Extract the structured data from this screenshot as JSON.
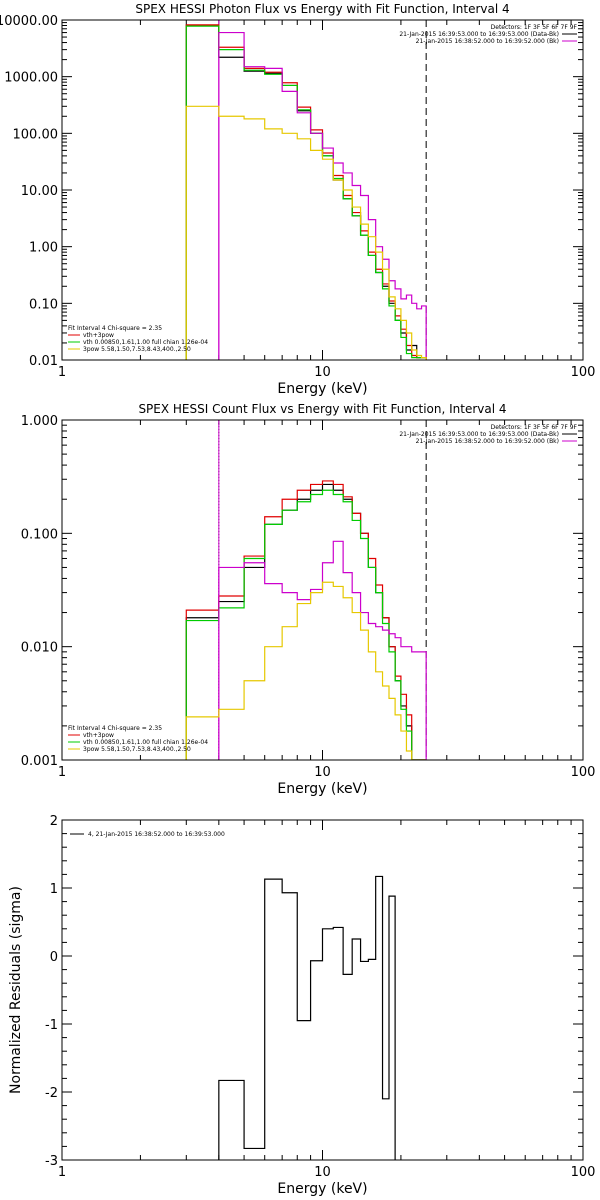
{
  "chart_data": [
    {
      "type": "line",
      "title": "SPEX HESSI Photon Flux vs Energy with Fit Function, Interval 4",
      "xlabel": "Energy (keV)",
      "ylabel": "",
      "xlim": [
        1,
        100
      ],
      "ylim": [
        0.01,
        10000
      ],
      "x_scale": "log",
      "y_scale": "log",
      "x_tick_labels": [
        "1",
        "10",
        "100"
      ],
      "y_tick_labels": [
        "0.01",
        "0.10",
        "1.00",
        "10.00",
        "100.00",
        "1000.00",
        "10000.00"
      ],
      "y_tick_values": [
        0.01,
        0.1,
        1,
        10,
        100,
        1000,
        10000
      ],
      "bin_edges": [
        3,
        4,
        5,
        6,
        7,
        8,
        9,
        10,
        11,
        12,
        13,
        14,
        15,
        16,
        17,
        18,
        19,
        20,
        21,
        22,
        23,
        24,
        25
      ],
      "detectors_label": "Detectors: 1F 3F 5F 6F 7F 9F",
      "header_lines": [
        {
          "text": "21-Jan-2015 16:39:53.000 to 16:39:53.000 (Data-Bk)",
          "color": "#000000"
        },
        {
          "text": "21-Jan-2015 16:38:52.000 to 16:39:52.000 (Bk)",
          "color": "#cc00cc"
        }
      ],
      "fit_label": "Fit Interval 4   Chi-square = 2.35",
      "legend": [
        {
          "text": "vth+3pow",
          "color": "#e00000"
        },
        {
          "text": "vth 0.00850,1.61,1.00  full chian 1.26e-04",
          "color": "#00cc00"
        },
        {
          "text": "3pow 5.58,1.50,7.53,8.43,400.,2.50",
          "color": "#e6c800"
        }
      ],
      "vlines": [
        {
          "x": 4,
          "style": "solid",
          "color": "#cc00cc"
        },
        {
          "x": 25,
          "style": "dashed",
          "color": "#000000"
        }
      ],
      "series": [
        {
          "color": "#000000",
          "values": [
            8000,
            2200,
            1250,
            1150,
            700,
            250,
            100,
            40,
            15,
            7,
            3.5,
            1.6,
            0.7,
            0.35,
            0.2,
            0.1,
            0.05,
            0.03,
            0.015,
            0.018,
            0.011,
            0.011
          ]
        },
        {
          "color": "#e00000",
          "values": [
            8200,
            3300,
            1400,
            1200,
            780,
            290,
            115,
            45,
            18,
            8,
            4,
            1.9,
            0.8,
            0.4,
            0.22,
            0.11,
            0.06,
            0.035,
            0.018,
            0.012,
            0.011,
            0.011
          ]
        },
        {
          "color": "#00cc00",
          "values": [
            7800,
            3000,
            1300,
            1100,
            700,
            260,
            100,
            40,
            16,
            7,
            3.5,
            1.6,
            0.7,
            0.35,
            0.18,
            0.09,
            0.05,
            0.025,
            0.013,
            0.011,
            0.011,
            0.011
          ]
        },
        {
          "color": "#cc00cc",
          "values": [
            null,
            6000,
            1500,
            1400,
            550,
            230,
            100,
            55,
            30,
            20,
            12,
            8,
            3,
            1,
            0.6,
            0.25,
            0.18,
            0.12,
            0.14,
            0.1,
            0.08,
            0.09
          ]
        },
        {
          "color": "#e6c800",
          "values": [
            300,
            200,
            180,
            120,
            100,
            80,
            50,
            35,
            15,
            10,
            5,
            2.5,
            1.5,
            0.8,
            0.4,
            0.13,
            0.08,
            0.05,
            0.03,
            0.015,
            0.012,
            0.011
          ]
        }
      ]
    },
    {
      "type": "line",
      "title": "SPEX HESSI Count Flux vs Energy with Fit Function, Interval 4",
      "xlabel": "Energy (keV)",
      "ylabel": "",
      "xlim": [
        1,
        100
      ],
      "ylim": [
        0.001,
        1
      ],
      "x_scale": "log",
      "y_scale": "log",
      "x_tick_labels": [
        "1",
        "10",
        "100"
      ],
      "y_tick_labels": [
        "0.001",
        "0.010",
        "0.100",
        "1.000"
      ],
      "y_tick_values": [
        0.001,
        0.01,
        0.1,
        1
      ],
      "bin_edges": [
        3,
        4,
        5,
        6,
        7,
        8,
        9,
        10,
        11,
        12,
        13,
        14,
        15,
        16,
        17,
        18,
        19,
        20,
        21,
        22,
        23,
        24,
        25
      ],
      "detectors_label": "Detectors: 1F 3F 5F 6F 7F 9F",
      "header_lines": [
        {
          "text": "21-Jan-2015 16:39:53.000 to 16:39:53.000 (Data-Bk)",
          "color": "#000000"
        },
        {
          "text": "21-Jan-2015 16:38:52.000 to 16:39:52.000 (Bk)",
          "color": "#cc00cc"
        }
      ],
      "fit_label": "Fit Interval 4   Chi-square = 2.35",
      "legend": [
        {
          "text": "vth+3pow",
          "color": "#e00000"
        },
        {
          "text": "vth 0.00850,1.61,1.00  full chian 1.26e-04",
          "color": "#00cc00"
        },
        {
          "text": "3pow 5.58,1.50,7.53,8.43,400.,2.50",
          "color": "#e6c800"
        }
      ],
      "vlines": [
        {
          "x": 4,
          "style": "dotted",
          "color": "#000000"
        },
        {
          "x": 4,
          "style": "solid",
          "color": "#cc00cc"
        },
        {
          "x": 25,
          "style": "dashed",
          "color": "#000000"
        }
      ],
      "series": [
        {
          "color": "#000000",
          "values": [
            0.018,
            0.025,
            0.05,
            0.12,
            0.16,
            0.2,
            0.24,
            0.27,
            0.24,
            0.2,
            0.15,
            0.1,
            0.05,
            0.03,
            0.018,
            0.01,
            0.005,
            0.003,
            0.002,
            0.001,
            0.001,
            0.001
          ]
        },
        {
          "color": "#e00000",
          "values": [
            0.021,
            0.028,
            0.063,
            0.14,
            0.2,
            0.24,
            0.27,
            0.29,
            0.27,
            0.21,
            0.15,
            0.1,
            0.06,
            0.035,
            0.018,
            0.01,
            0.0055,
            0.0038,
            0.0025,
            0.001,
            0.001,
            0.001
          ]
        },
        {
          "color": "#00cc00",
          "values": [
            0.017,
            0.022,
            0.06,
            0.12,
            0.16,
            0.19,
            0.22,
            0.24,
            0.22,
            0.19,
            0.13,
            0.09,
            0.05,
            0.03,
            0.016,
            0.009,
            0.005,
            0.0028,
            0.0018,
            0.001,
            0.001,
            0.001
          ]
        },
        {
          "color": "#cc00cc",
          "values": [
            null,
            0.05,
            0.055,
            0.036,
            0.03,
            0.026,
            0.032,
            0.055,
            0.085,
            0.045,
            0.03,
            0.02,
            0.016,
            0.015,
            0.014,
            0.013,
            0.012,
            0.01,
            0.01,
            0.009,
            0.009,
            0.009
          ]
        },
        {
          "color": "#e6c800",
          "values": [
            0.0024,
            0.0028,
            0.005,
            0.01,
            0.015,
            0.024,
            0.03,
            0.037,
            0.034,
            0.027,
            0.02,
            0.014,
            0.009,
            0.006,
            0.0045,
            0.0035,
            0.0025,
            0.0018,
            0.0012,
            0.001,
            0.001,
            0.001
          ]
        }
      ]
    },
    {
      "type": "line",
      "title": "",
      "xlabel": "Energy (keV)",
      "ylabel": "Normalized Residuals (sigma)",
      "xlim": [
        1,
        100
      ],
      "ylim": [
        -3,
        2
      ],
      "x_scale": "log",
      "y_scale": "linear",
      "x_tick_labels": [
        "1",
        "10",
        "100"
      ],
      "y_tick_labels": [
        "-3",
        "-2",
        "-1",
        "0",
        "1",
        "2"
      ],
      "y_tick_values": [
        -3,
        -2,
        -1,
        0,
        1,
        2
      ],
      "bin_edges": [
        4,
        5,
        6,
        7,
        8,
        9,
        10,
        11,
        12,
        13,
        14,
        15,
        16,
        17,
        18,
        19,
        20,
        21,
        22,
        23,
        24,
        25
      ],
      "legend": [
        {
          "text": "4, 21-Jan-2015 16:38:52.000 to 16:39:53.000",
          "color": "#000000"
        }
      ],
      "series": [
        {
          "color": "#000000",
          "values": [
            -1.83,
            -2.83,
            1.13,
            0.93,
            -0.95,
            -0.07,
            0.4,
            0.42,
            -0.27,
            0.25,
            -0.08,
            -0.05,
            1.17,
            -2.1,
            0.88,
            null,
            null,
            null,
            null,
            null,
            null
          ]
        }
      ]
    }
  ]
}
